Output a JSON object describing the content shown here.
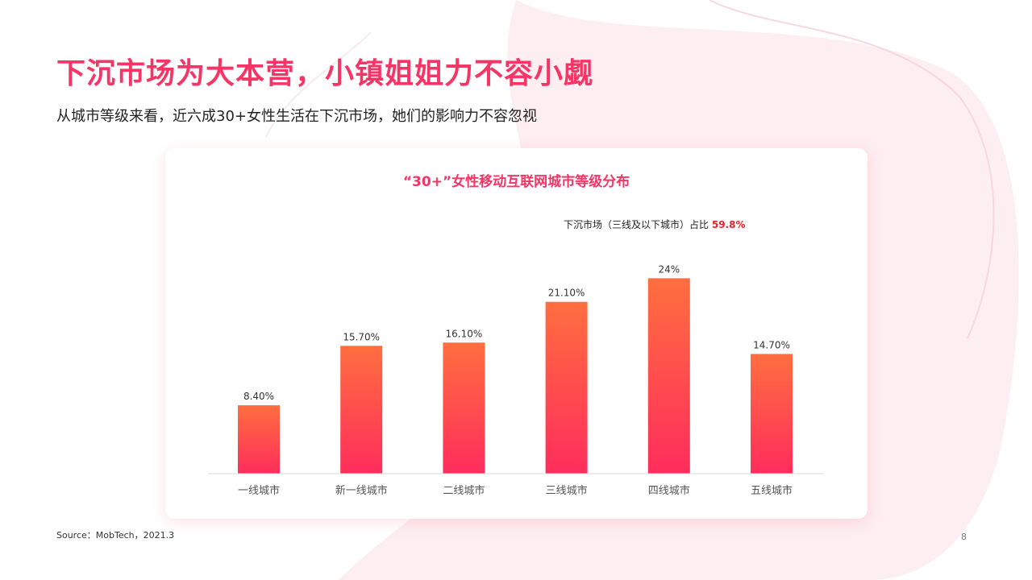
{
  "slide": {
    "title": "下沉市场为大本营，小镇姐姐力不容小觑",
    "subtitle": "从城市等级来看，近六成30+女性生活在下沉市场，她们的影响力不容忽视",
    "source": "Source：MobTech，2021.3",
    "page_number": "8"
  },
  "colors": {
    "accent": "#f43566",
    "bar_top": "#ff6e3f",
    "bar_bottom": "#ff2d5c",
    "highlight": "#e8202a"
  },
  "chart_data": {
    "type": "bar",
    "title": "“30+”女性移动互联网城市等级分布",
    "annotation": {
      "prefix": "下沉市场（三线及以下城市）占比",
      "value": "59.8%"
    },
    "categories": [
      "一线城市",
      "新一线城市",
      "二线城市",
      "三线城市",
      "四线城市",
      "五线城市"
    ],
    "values": [
      8.4,
      15.7,
      16.1,
      21.1,
      24,
      14.7
    ],
    "value_labels": [
      "8.40%",
      "15.70%",
      "16.10%",
      "21.10%",
      "24%",
      "14.70%"
    ],
    "xlabel": "",
    "ylabel": "",
    "ylim": [
      0,
      27.8
    ],
    "grid": false,
    "legend": "none"
  }
}
